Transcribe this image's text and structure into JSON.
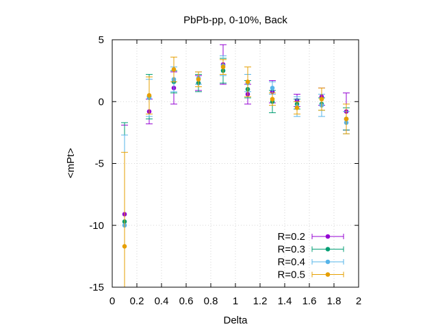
{
  "chart_data": {
    "type": "scatter",
    "title": "PbPb-pp, 0-10%, Back",
    "xlabel": "Delta",
    "ylabel": "<mPt>",
    "xlim": [
      0,
      2
    ],
    "ylim": [
      -15,
      5
    ],
    "xticks": [
      0,
      0.2,
      0.4,
      0.6,
      0.8,
      1,
      1.2,
      1.4,
      1.6,
      1.8,
      2
    ],
    "xtick_labels": [
      "0",
      "0.2",
      "0.4",
      "0.6",
      "0.8",
      "1",
      "1.2",
      "1.4",
      "1.6",
      "1.8",
      "2"
    ],
    "yticks": [
      5,
      0,
      -5,
      -10,
      -15
    ],
    "ytick_labels": [
      "5",
      "0",
      "-5",
      "-10",
      "-15"
    ],
    "grid": true,
    "legend_position": "bottom-right",
    "series": [
      {
        "name": "R=0.2",
        "color": "#9400d3",
        "x": [
          0.1,
          0.3,
          0.5,
          0.7,
          0.9,
          1.1,
          1.3,
          1.5,
          1.7,
          1.9
        ],
        "y": [
          -9.1,
          -0.8,
          1.1,
          1.5,
          3.0,
          0.6,
          0.8,
          0.1,
          0.4,
          -0.8
        ],
        "yerr": [
          7.2,
          1.0,
          1.3,
          0.6,
          1.6,
          0.8,
          0.9,
          0.5,
          0.7,
          1.5
        ]
      },
      {
        "name": "R=0.3",
        "color": "#009e73",
        "x": [
          0.1,
          0.3,
          0.5,
          0.7,
          0.9,
          1.1,
          1.3,
          1.5,
          1.7,
          1.9
        ],
        "y": [
          -9.7,
          0.4,
          1.6,
          1.5,
          2.5,
          1.0,
          0.0,
          -0.2,
          -0.2,
          -1.4
        ],
        "yerr": [
          8.0,
          1.8,
          0.9,
          0.7,
          1.0,
          0.7,
          0.9,
          0.4,
          0.5,
          0.9
        ]
      },
      {
        "name": "R=0.4",
        "color": "#56b4e9",
        "x": [
          0.1,
          0.3,
          0.5,
          0.7,
          0.9,
          1.1,
          1.3,
          1.5,
          1.7,
          1.9
        ],
        "y": [
          -10.0,
          0.3,
          1.8,
          1.9,
          2.9,
          1.5,
          1.1,
          -0.4,
          -0.3,
          -1.7
        ],
        "yerr": [
          7.3,
          1.5,
          1.0,
          0.5,
          0.8,
          0.7,
          0.5,
          0.8,
          0.9,
          0.9
        ]
      },
      {
        "name": "R=0.5",
        "color": "#e69f00",
        "x": [
          0.1,
          0.3,
          0.5,
          0.7,
          0.9,
          1.1,
          1.3,
          1.5,
          1.7,
          1.9
        ],
        "y": [
          -11.7,
          0.5,
          2.6,
          1.8,
          2.8,
          1.6,
          0.2,
          -0.5,
          0.2,
          -1.4
        ],
        "yerr": [
          7.6,
          1.5,
          1.0,
          0.6,
          0.6,
          1.2,
          0.5,
          0.5,
          0.9,
          1.2
        ]
      }
    ]
  }
}
